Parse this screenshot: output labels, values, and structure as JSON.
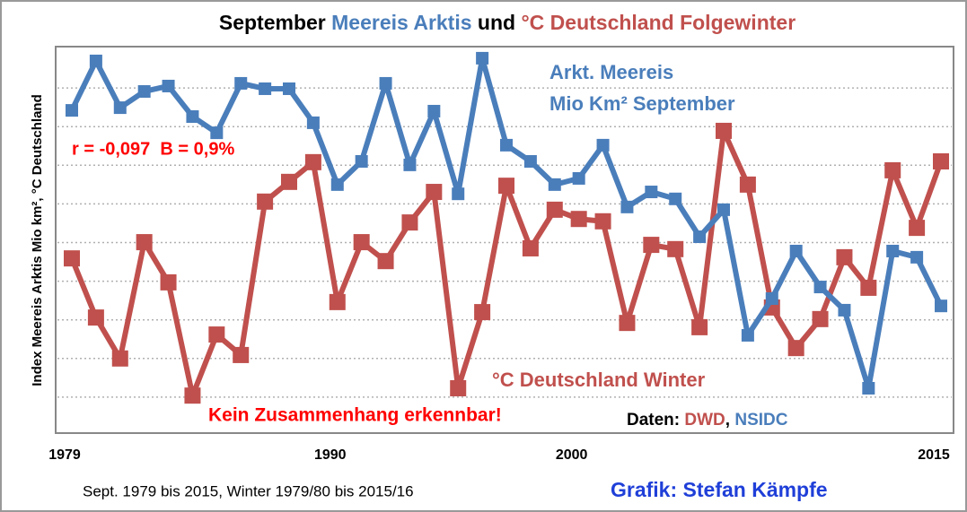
{
  "chart_data": {
    "type": "line",
    "title": [
      "September",
      "Meereis Arktis",
      "und",
      "°C Deutschland Folgewinter"
    ],
    "y_axis_label": "Index Meereis Arktis Mio km², °C Deutschland",
    "x": [
      1979,
      1980,
      1981,
      1982,
      1983,
      1984,
      1985,
      1986,
      1987,
      1988,
      1989,
      1990,
      1991,
      1992,
      1993,
      1994,
      1995,
      1996,
      1997,
      1998,
      1999,
      2000,
      2001,
      2002,
      2003,
      2004,
      2005,
      2006,
      2007,
      2008,
      2009,
      2010,
      2011,
      2012,
      2013,
      2014,
      2015
    ],
    "xlim": [
      1979,
      2015
    ],
    "xticks": [
      1979,
      1990,
      2000,
      2015
    ],
    "ylim": [
      0,
      10
    ],
    "yticks": [
      1,
      2,
      3,
      4,
      5,
      6,
      7,
      8,
      9
    ],
    "grid": true,
    "series": [
      {
        "name": "Arkt. Meereis",
        "unit_label": "Mio Km² September",
        "color": "#4a7ebb",
        "values": [
          8.42,
          9.7,
          8.49,
          8.91,
          9.05,
          8.26,
          7.84,
          9.12,
          8.98,
          8.98,
          8.1,
          6.5,
          7.1,
          9.12,
          7.01,
          8.4,
          6.26,
          9.77,
          7.52,
          7.1,
          6.5,
          6.66,
          7.52,
          5.92,
          6.31,
          6.13,
          5.15,
          5.85,
          2.6,
          3.55,
          4.78,
          3.85,
          3.25,
          1.23,
          4.78,
          4.62,
          3.36
        ]
      },
      {
        "name": "°C Deutschland Winter",
        "color": "#c0504d",
        "values": [
          4.59,
          3.06,
          2.0,
          5.01,
          3.97,
          1.04,
          2.62,
          2.09,
          6.06,
          6.57,
          7.08,
          3.46,
          5.01,
          4.52,
          5.52,
          6.31,
          1.23,
          3.2,
          6.47,
          4.85,
          5.85,
          5.61,
          5.55,
          2.92,
          4.94,
          4.83,
          2.81,
          7.89,
          6.5,
          3.32,
          2.27,
          3.02,
          4.62,
          3.83,
          6.87,
          5.38,
          7.1
        ]
      }
    ],
    "annotations": {
      "stats": "r = -0,097  B = 0,9%",
      "conclusion": "Kein Zusammenhang erkennbar!",
      "source": [
        "Daten:",
        "DWD",
        ",",
        "NSIDC"
      ],
      "footer": "Sept. 1979 bis 2015, Winter 1979/80 bis 2015/16",
      "credit": "Grafik: Stefan Kämpfe"
    }
  }
}
